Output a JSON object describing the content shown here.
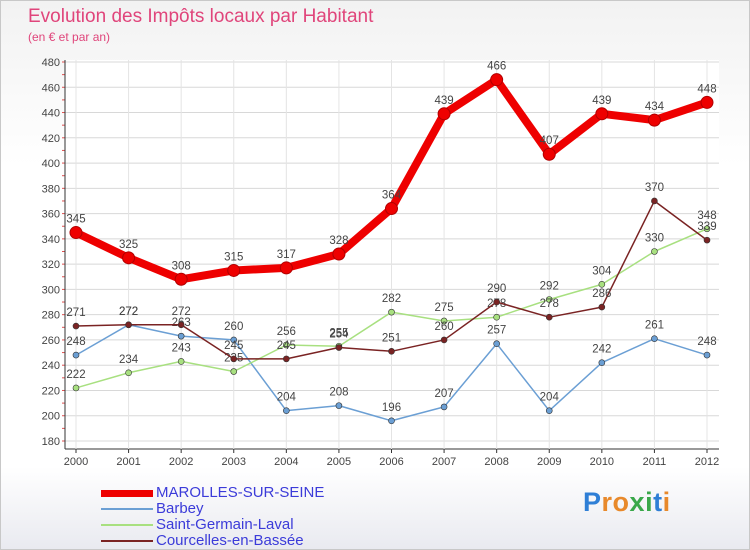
{
  "title": "Evolution des Impôts locaux par Habitant",
  "subtitle": "(en € et par an)",
  "logo_text": "Proxiti",
  "chart_data": {
    "type": "line",
    "title": "Evolution des Impôts locaux par Habitant",
    "subtitle": "(en € et par an)",
    "xlabel": "",
    "ylabel": "",
    "x": [
      "2000",
      "2001",
      "2002",
      "2003",
      "2004",
      "2005",
      "2006",
      "2007",
      "2008",
      "2009",
      "2010",
      "2011",
      "2012"
    ],
    "ylim": [
      180,
      480
    ],
    "yticks": [
      180,
      200,
      220,
      240,
      260,
      280,
      300,
      320,
      340,
      360,
      380,
      400,
      420,
      440,
      460,
      480
    ],
    "grid": true,
    "legend_position": "bottom-left",
    "series": [
      {
        "name": "MAROLLES-SUR-SEINE",
        "color": "#ee0000",
        "emphasis": true,
        "values": [
          345,
          325,
          308,
          315,
          317,
          328,
          364,
          439,
          466,
          407,
          439,
          434,
          448
        ]
      },
      {
        "name": "Barbey",
        "color": "#6b9fd4",
        "values": [
          248,
          272,
          263,
          260,
          204,
          208,
          196,
          207,
          257,
          204,
          242,
          261,
          248
        ]
      },
      {
        "name": "Saint-Germain-Laval",
        "color": "#a8e080",
        "values": [
          222,
          234,
          243,
          235,
          256,
          255,
          282,
          275,
          278,
          292,
          304,
          330,
          348
        ]
      },
      {
        "name": "Courcelles-en-Bassée",
        "color": "#7a2323",
        "values": [
          271,
          272,
          272,
          245,
          245,
          254,
          251,
          260,
          290,
          278,
          286,
          370,
          339
        ]
      }
    ]
  }
}
